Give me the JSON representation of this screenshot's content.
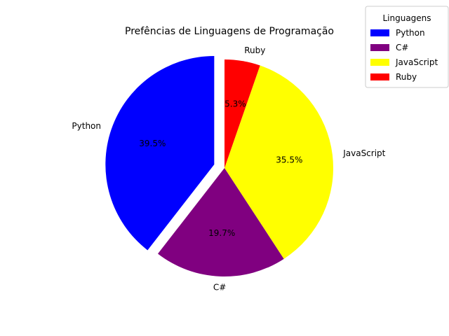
{
  "chart_data": {
    "type": "pie",
    "title": "Prefências de Linguagens de Programação",
    "legend_title": "Linguagens",
    "legend_position": "top-right",
    "start_angle_deg": 90,
    "direction": "counterclockwise",
    "slices": [
      {
        "label": "Python",
        "value": 39.5,
        "pct_label": "39.5%",
        "color": "#0000ff",
        "explode": 0.1
      },
      {
        "label": "C#",
        "value": 19.7,
        "pct_label": "19.7%",
        "color": "#800080",
        "explode": 0
      },
      {
        "label": "JavaScript",
        "value": 35.5,
        "pct_label": "35.5%",
        "color": "#ffff00",
        "explode": 0
      },
      {
        "label": "Ruby",
        "value": 5.3,
        "pct_label": "5.3%",
        "color": "#ff0000",
        "explode": 0
      }
    ]
  }
}
